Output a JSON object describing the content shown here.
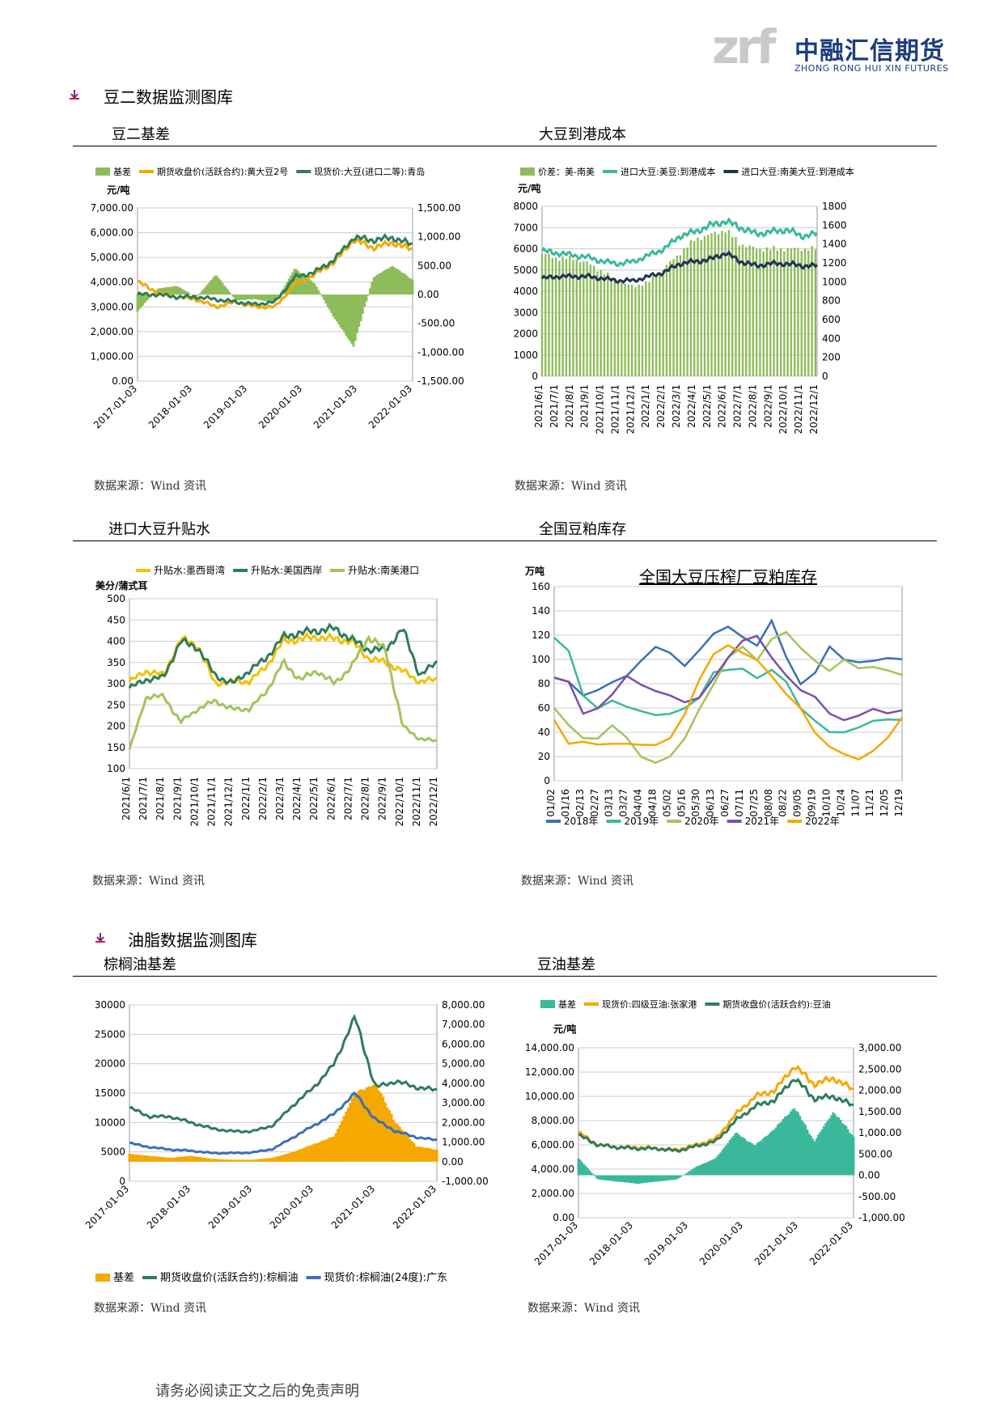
{
  "header": {
    "logo_mark": "zrf",
    "logo_cn": "中融汇信期货",
    "logo_en": "ZHONG RONG HUI XIN FUTURES",
    "brand_color": "#1c3d7c"
  },
  "sections": [
    {
      "title": "豆二数据监测图库",
      "icon": "bullet-arrow-icon"
    },
    {
      "title": "油脂数据监测图库",
      "icon": "bullet-arrow-icon"
    }
  ],
  "charts": [
    {
      "title": "豆二基差",
      "source": "数据来源：Wind 资讯"
    },
    {
      "title": "大豆到港成本",
      "source": "数据来源：Wind 资讯"
    },
    {
      "title": "进口大豆升贴水",
      "source": "数据来源：Wind 资讯"
    },
    {
      "title": "全国豆粕库存",
      "source": "数据来源：Wind 资讯"
    },
    {
      "title": "棕榈油基差",
      "source": "数据来源：Wind 资讯"
    },
    {
      "title": "豆油基差",
      "source": "数据来源：Wind 资讯"
    }
  ],
  "footer": "请务必阅读正文之后的免责声明",
  "chart_data": [
    {
      "type": "line",
      "unit": "元/吨",
      "x_ticks": [
        "2017-01-03",
        "2018-01-03",
        "2019-01-03",
        "2020-01-03",
        "2021-01-03",
        "2022-01-03"
      ],
      "x": [
        2017.0,
        2017.5,
        2018.0,
        2018.5,
        2019.0,
        2019.5,
        2020.0,
        2020.5,
        2021.0,
        2021.5,
        2022.0,
        2022.3,
        2022.6,
        2022.9,
        2023.0
      ],
      "ylim": [
        0,
        7000
      ],
      "y_ticks": [
        "0.00",
        "1,000.00",
        "2,000.00",
        "3,000.00",
        "4,000.00",
        "5,000.00",
        "6,000.00",
        "7,000.00"
      ],
      "y2lim": [
        -1500,
        1500
      ],
      "y2_ticks": [
        "-1,500.00",
        "-1,000.00",
        "-500.00",
        "0.00",
        "500.00",
        "1,000.00",
        "1,500.00"
      ],
      "series": [
        {
          "name": "基差",
          "kind": "area",
          "axis": "right",
          "color": "#8fbc5a",
          "values": [
            -300,
            100,
            150,
            -50,
            350,
            -100,
            -80,
            -150,
            450,
            200,
            -400,
            -900,
            300,
            500,
            250
          ]
        },
        {
          "name": "期货收盘价(活跃合约):黄大豆2号",
          "axis": "left",
          "color": "#f5a800",
          "values": [
            4000,
            3600,
            3400,
            3300,
            3000,
            3200,
            3000,
            3000,
            3900,
            4300,
            4800,
            5700,
            5400,
            5600,
            5300
          ]
        },
        {
          "name": "现货价:大豆(进口二等):青岛",
          "axis": "left",
          "color": "#2e7d5b",
          "values": [
            3500,
            3500,
            3400,
            3400,
            3300,
            3200,
            3100,
            3200,
            4200,
            4400,
            4900,
            5800,
            5700,
            5800,
            5500
          ]
        }
      ]
    },
    {
      "type": "line",
      "unit": "元/吨",
      "x_ticks": [
        "2021/6/1",
        "2021/7/1",
        "2021/8/1",
        "2021/9/1",
        "2021/10/1",
        "2021/11/1",
        "2021/12/1",
        "2022/1/1",
        "2022/2/1",
        "2022/3/1",
        "2022/4/1",
        "2022/5/1",
        "2022/6/1",
        "2022/7/1",
        "2022/8/1",
        "2022/9/1",
        "2022/10/1",
        "2022/11/1",
        "2022/12/1"
      ],
      "ylim": [
        0,
        8000
      ],
      "y_ticks": [
        "0",
        "1000",
        "2000",
        "3000",
        "4000",
        "5000",
        "6000",
        "7000",
        "8000"
      ],
      "y2lim": [
        0,
        1800
      ],
      "y2_ticks": [
        "0",
        "200",
        "400",
        "600",
        "800",
        "1000",
        "1200",
        "1400",
        "1600",
        "1800"
      ],
      "series": [
        {
          "name": "价差：美-南美",
          "kind": "bar",
          "axis": "right",
          "color": "#8fbc5a",
          "values": [
            1300,
            1250,
            1250,
            1200,
            1100,
            1000,
            950,
            1000,
            1150,
            1300,
            1450,
            1500,
            1550,
            1400,
            1350,
            1350,
            1350,
            1350,
            1350
          ]
        },
        {
          "name": "进口大豆:美豆:到港成本",
          "axis": "left",
          "color": "#3bb89b",
          "values": [
            5900,
            5800,
            5700,
            5600,
            5400,
            5300,
            5400,
            5700,
            6000,
            6600,
            6800,
            7100,
            7300,
            7000,
            6700,
            6800,
            6900,
            6600,
            6700
          ]
        },
        {
          "name": "进口大豆:南美大豆:到港成本",
          "axis": "left",
          "color": "#1f3554",
          "values": [
            4600,
            4700,
            4700,
            4700,
            4600,
            4500,
            4500,
            4700,
            4900,
            5300,
            5400,
            5500,
            5800,
            5400,
            5200,
            5300,
            5300,
            5200,
            5200
          ]
        }
      ]
    },
    {
      "type": "line",
      "unit": "美分/蒲式耳",
      "x_ticks": [
        "2021/6/1",
        "2021/7/1",
        "2021/8/1",
        "2021/9/1",
        "2021/10/1",
        "2021/11/1",
        "2021/12/1",
        "2022/1/1",
        "2022/2/1",
        "2022/3/1",
        "2022/4/1",
        "2022/5/1",
        "2022/6/1",
        "2022/7/1",
        "2022/8/1",
        "2022/9/1",
        "2022/10/1",
        "2022/11/1",
        "2022/12/1"
      ],
      "ylim": [
        100,
        500
      ],
      "y_ticks": [
        "100",
        "150",
        "200",
        "250",
        "300",
        "350",
        "400",
        "450",
        "500"
      ],
      "series": [
        {
          "name": "升贴水:墨西哥湾",
          "color": "#f5c000",
          "values": [
            305,
            330,
            320,
            405,
            390,
            300,
            305,
            305,
            340,
            400,
            405,
            410,
            405,
            400,
            360,
            350,
            330,
            305,
            310
          ]
        },
        {
          "name": "升贴水:美国西岸",
          "color": "#2e7d5b",
          "values": [
            290,
            310,
            315,
            400,
            385,
            320,
            300,
            330,
            360,
            410,
            420,
            425,
            430,
            405,
            380,
            380,
            430,
            320,
            350
          ]
        },
        {
          "name": "升贴水:南美港口",
          "color": "#a3c45a",
          "values": [
            145,
            270,
            270,
            210,
            240,
            260,
            240,
            240,
            280,
            350,
            310,
            330,
            300,
            340,
            410,
            380,
            200,
            170,
            165
          ]
        }
      ]
    },
    {
      "type": "line",
      "title": "全国大豆压榨厂豆粕库存",
      "unit": "万吨",
      "x_ticks": [
        "01/02",
        "01/16",
        "02/13",
        "02/27",
        "03/13",
        "03/27",
        "04/04",
        "04/18",
        "05/02",
        "05/16",
        "05/30",
        "06/13",
        "06/27",
        "07/11",
        "07/25",
        "08/08",
        "08/22",
        "09/05",
        "09/19",
        "10/10",
        "10/24",
        "11/07",
        "11/21",
        "12/05",
        "12/19"
      ],
      "ylim": [
        0,
        160
      ],
      "y_ticks": [
        "0",
        "20",
        "40",
        "60",
        "80",
        "100",
        "120",
        "140",
        "160"
      ],
      "series": [
        {
          "name": "2018年",
          "color": "#3b6fba",
          "values": [
            85,
            80,
            70,
            75,
            80,
            85,
            100,
            112,
            105,
            95,
            110,
            122,
            125,
            118,
            112,
            130,
            100,
            80,
            90,
            110,
            100,
            100,
            100,
            100,
            100
          ]
        },
        {
          "name": "2019年",
          "color": "#3bb89b",
          "values": [
            118,
            105,
            70,
            60,
            65,
            60,
            58,
            55,
            55,
            60,
            70,
            90,
            90,
            92,
            85,
            90,
            80,
            60,
            50,
            40,
            40,
            45,
            50,
            50,
            50
          ]
        },
        {
          "name": "2020年",
          "color": "#a3c45a",
          "values": [
            60,
            45,
            35,
            35,
            45,
            35,
            20,
            15,
            20,
            35,
            60,
            80,
            100,
            110,
            100,
            115,
            120,
            110,
            100,
            90,
            100,
            95,
            95,
            90,
            87
          ]
        },
        {
          "name": "2021年",
          "color": "#7e4fa6",
          "values": [
            85,
            80,
            55,
            60,
            70,
            85,
            80,
            75,
            70,
            65,
            70,
            85,
            100,
            115,
            120,
            100,
            85,
            75,
            70,
            55,
            50,
            55,
            60,
            55,
            58
          ]
        },
        {
          "name": "2022年",
          "color": "#f5a800",
          "values": [
            50,
            30,
            32,
            30,
            30,
            30,
            30,
            30,
            35,
            55,
            85,
            105,
            110,
            105,
            100,
            85,
            70,
            60,
            40,
            28,
            22,
            18,
            25,
            35,
            52
          ]
        }
      ]
    },
    {
      "type": "line",
      "x_ticks": [
        "2017-01-03",
        "2018-01-03",
        "2019-01-03",
        "2020-01-03",
        "2021-01-03",
        "2022-01-03"
      ],
      "x": [
        2017.0,
        2017.5,
        2018.0,
        2018.5,
        2019.0,
        2019.5,
        2020.0,
        2020.5,
        2021.0,
        2021.5,
        2022.0,
        2022.2,
        2022.4,
        2022.6,
        2022.9,
        2023.0
      ],
      "ylim": [
        0,
        30000
      ],
      "y_ticks": [
        "0",
        "5000",
        "10000",
        "15000",
        "20000",
        "25000",
        "30000"
      ],
      "y2lim": [
        -1000,
        8000
      ],
      "y2_ticks": [
        "-1,000.00",
        "0.00",
        "1,000.00",
        "2,000.00",
        "3,000.00",
        "4,000.00",
        "5,000.00",
        "6,000.00",
        "7,000.00",
        "8,000.00"
      ],
      "series": [
        {
          "name": "基差",
          "kind": "area",
          "axis": "right",
          "color": "#f5a800",
          "values": [
            400,
            300,
            200,
            300,
            150,
            100,
            100,
            200,
            500,
            900,
            1300,
            3500,
            4000,
            2000,
            800,
            600
          ]
        },
        {
          "name": "期货收盘价(活跃合约):棕榈油",
          "axis": "left",
          "color": "#2e7d5b",
          "values": [
            12500,
            11000,
            11000,
            10000,
            9000,
            8500,
            8500,
            9500,
            13000,
            16000,
            20000,
            28000,
            16000,
            17000,
            16000,
            15500
          ]
        },
        {
          "name": "现货价:棕榈油(24度):广东",
          "axis": "left",
          "color": "#3b6fba",
          "values": [
            6500,
            5800,
            5400,
            5200,
            4800,
            4800,
            4900,
            5500,
            7500,
            9500,
            11500,
            15000,
            10500,
            8500,
            7500,
            7000
          ]
        }
      ]
    },
    {
      "type": "line",
      "unit": "元/吨",
      "x_ticks": [
        "2017-01-03",
        "2018-01-03",
        "2019-01-03",
        "2020-01-03",
        "2021-01-03",
        "2022-01-03"
      ],
      "x": [
        2017.0,
        2017.5,
        2018.0,
        2018.5,
        2019.0,
        2019.5,
        2020.0,
        2020.5,
        2021.0,
        2021.5,
        2022.0,
        2022.3,
        2022.6,
        2022.9,
        2023.0
      ],
      "ylim": [
        0,
        14000
      ],
      "y_ticks": [
        "0.00",
        "2,000.00",
        "4,000.00",
        "6,000.00",
        "8,000.00",
        "10,000.00",
        "12,000.00",
        "14,000.00"
      ],
      "y2lim": [
        -1000,
        3000
      ],
      "y2_ticks": [
        "-1,000.00",
        "-500.00",
        "0.00",
        "500.00",
        "1,000.00",
        "1,500.00",
        "2,000.00",
        "2,500.00",
        "3,000.00"
      ],
      "series": [
        {
          "name": "基差",
          "kind": "area",
          "axis": "right",
          "color": "#3bb89b",
          "values": [
            400,
            -100,
            -150,
            -200,
            -150,
            -100,
            200,
            400,
            1000,
            700,
            1100,
            1600,
            800,
            1500,
            900
          ]
        },
        {
          "name": "现货价:四级豆油:张家港",
          "axis": "left",
          "color": "#f5a800",
          "values": [
            7000,
            6000,
            5800,
            5800,
            5700,
            5600,
            6000,
            6500,
            8500,
            10000,
            10500,
            12500,
            11000,
            11500,
            10500
          ]
        },
        {
          "name": "期货收盘价(活跃合约):豆油",
          "axis": "left",
          "color": "#2e7d5b",
          "values": [
            6800,
            6000,
            5800,
            5700,
            5700,
            5500,
            5900,
            6300,
            8000,
            9200,
            9700,
            11500,
            9800,
            10000,
            9200
          ]
        }
      ]
    }
  ]
}
